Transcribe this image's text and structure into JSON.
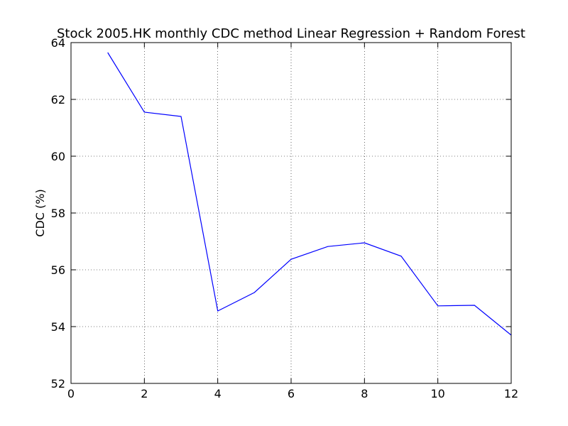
{
  "chart_data": {
    "type": "line",
    "title": "Stock 2005.HK monthly CDC method Linear Regression + Random Forest",
    "xlabel": "",
    "ylabel": "CDC (%)",
    "xlim": [
      0,
      12
    ],
    "ylim": [
      52,
      64
    ],
    "x_ticks": [
      0,
      2,
      4,
      6,
      8,
      10,
      12
    ],
    "y_ticks": [
      52,
      54,
      56,
      58,
      60,
      62,
      64
    ],
    "grid": true,
    "series": [
      {
        "color": "#0000ff",
        "x": [
          1,
          2,
          3,
          4,
          5,
          6,
          7,
          8,
          9,
          10,
          11,
          12
        ],
        "y": [
          63.65,
          61.55,
          61.4,
          54.55,
          55.2,
          56.37,
          56.82,
          56.95,
          56.48,
          54.73,
          54.75,
          53.7
        ]
      }
    ]
  }
}
